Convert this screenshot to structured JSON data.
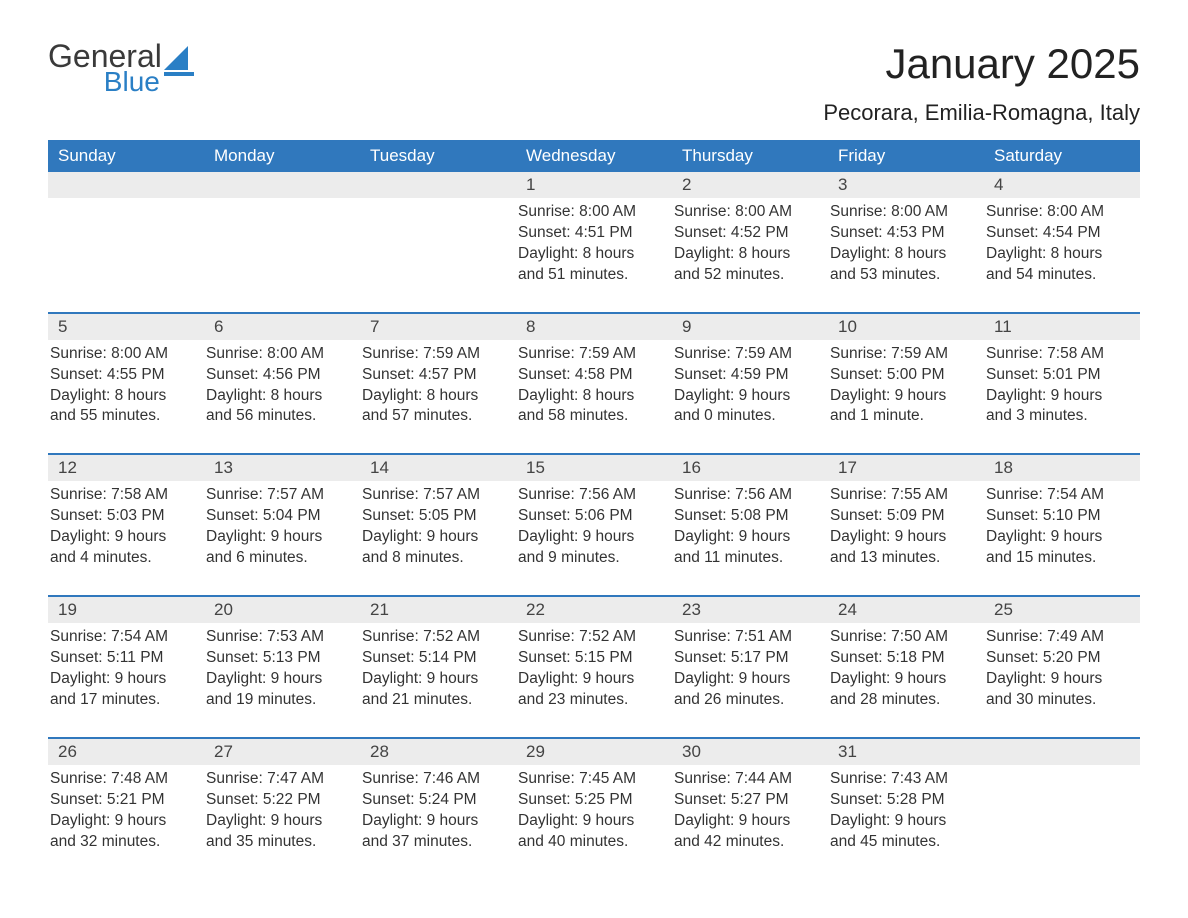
{
  "logo": {
    "text1": "General",
    "text2": "Blue",
    "icon_color": "#2a7fc5",
    "text1_color": "#3a3a3a"
  },
  "title": "January 2025",
  "location": "Pecorara, Emilia-Romagna, Italy",
  "header_bg": "#3078bd",
  "header_fg": "#ffffff",
  "daynum_bg": "#ececec",
  "border_color": "#3078bd",
  "text_color": "#333333",
  "day_headers": [
    "Sunday",
    "Monday",
    "Tuesday",
    "Wednesday",
    "Thursday",
    "Friday",
    "Saturday"
  ],
  "weeks": [
    {
      "nums": [
        "",
        "",
        "",
        "1",
        "2",
        "3",
        "4"
      ],
      "cells": [
        [],
        [],
        [],
        [
          "Sunrise: 8:00 AM",
          "Sunset: 4:51 PM",
          "Daylight: 8 hours",
          "and 51 minutes."
        ],
        [
          "Sunrise: 8:00 AM",
          "Sunset: 4:52 PM",
          "Daylight: 8 hours",
          "and 52 minutes."
        ],
        [
          "Sunrise: 8:00 AM",
          "Sunset: 4:53 PM",
          "Daylight: 8 hours",
          "and 53 minutes."
        ],
        [
          "Sunrise: 8:00 AM",
          "Sunset: 4:54 PM",
          "Daylight: 8 hours",
          "and 54 minutes."
        ]
      ]
    },
    {
      "nums": [
        "5",
        "6",
        "7",
        "8",
        "9",
        "10",
        "11"
      ],
      "cells": [
        [
          "Sunrise: 8:00 AM",
          "Sunset: 4:55 PM",
          "Daylight: 8 hours",
          "and 55 minutes."
        ],
        [
          "Sunrise: 8:00 AM",
          "Sunset: 4:56 PM",
          "Daylight: 8 hours",
          "and 56 minutes."
        ],
        [
          "Sunrise: 7:59 AM",
          "Sunset: 4:57 PM",
          "Daylight: 8 hours",
          "and 57 minutes."
        ],
        [
          "Sunrise: 7:59 AM",
          "Sunset: 4:58 PM",
          "Daylight: 8 hours",
          "and 58 minutes."
        ],
        [
          "Sunrise: 7:59 AM",
          "Sunset: 4:59 PM",
          "Daylight: 9 hours",
          "and 0 minutes."
        ],
        [
          "Sunrise: 7:59 AM",
          "Sunset: 5:00 PM",
          "Daylight: 9 hours",
          "and 1 minute."
        ],
        [
          "Sunrise: 7:58 AM",
          "Sunset: 5:01 PM",
          "Daylight: 9 hours",
          "and 3 minutes."
        ]
      ]
    },
    {
      "nums": [
        "12",
        "13",
        "14",
        "15",
        "16",
        "17",
        "18"
      ],
      "cells": [
        [
          "Sunrise: 7:58 AM",
          "Sunset: 5:03 PM",
          "Daylight: 9 hours",
          "and 4 minutes."
        ],
        [
          "Sunrise: 7:57 AM",
          "Sunset: 5:04 PM",
          "Daylight: 9 hours",
          "and 6 minutes."
        ],
        [
          "Sunrise: 7:57 AM",
          "Sunset: 5:05 PM",
          "Daylight: 9 hours",
          "and 8 minutes."
        ],
        [
          "Sunrise: 7:56 AM",
          "Sunset: 5:06 PM",
          "Daylight: 9 hours",
          "and 9 minutes."
        ],
        [
          "Sunrise: 7:56 AM",
          "Sunset: 5:08 PM",
          "Daylight: 9 hours",
          "and 11 minutes."
        ],
        [
          "Sunrise: 7:55 AM",
          "Sunset: 5:09 PM",
          "Daylight: 9 hours",
          "and 13 minutes."
        ],
        [
          "Sunrise: 7:54 AM",
          "Sunset: 5:10 PM",
          "Daylight: 9 hours",
          "and 15 minutes."
        ]
      ]
    },
    {
      "nums": [
        "19",
        "20",
        "21",
        "22",
        "23",
        "24",
        "25"
      ],
      "cells": [
        [
          "Sunrise: 7:54 AM",
          "Sunset: 5:11 PM",
          "Daylight: 9 hours",
          "and 17 minutes."
        ],
        [
          "Sunrise: 7:53 AM",
          "Sunset: 5:13 PM",
          "Daylight: 9 hours",
          "and 19 minutes."
        ],
        [
          "Sunrise: 7:52 AM",
          "Sunset: 5:14 PM",
          "Daylight: 9 hours",
          "and 21 minutes."
        ],
        [
          "Sunrise: 7:52 AM",
          "Sunset: 5:15 PM",
          "Daylight: 9 hours",
          "and 23 minutes."
        ],
        [
          "Sunrise: 7:51 AM",
          "Sunset: 5:17 PM",
          "Daylight: 9 hours",
          "and 26 minutes."
        ],
        [
          "Sunrise: 7:50 AM",
          "Sunset: 5:18 PM",
          "Daylight: 9 hours",
          "and 28 minutes."
        ],
        [
          "Sunrise: 7:49 AM",
          "Sunset: 5:20 PM",
          "Daylight: 9 hours",
          "and 30 minutes."
        ]
      ]
    },
    {
      "nums": [
        "26",
        "27",
        "28",
        "29",
        "30",
        "31",
        ""
      ],
      "cells": [
        [
          "Sunrise: 7:48 AM",
          "Sunset: 5:21 PM",
          "Daylight: 9 hours",
          "and 32 minutes."
        ],
        [
          "Sunrise: 7:47 AM",
          "Sunset: 5:22 PM",
          "Daylight: 9 hours",
          "and 35 minutes."
        ],
        [
          "Sunrise: 7:46 AM",
          "Sunset: 5:24 PM",
          "Daylight: 9 hours",
          "and 37 minutes."
        ],
        [
          "Sunrise: 7:45 AM",
          "Sunset: 5:25 PM",
          "Daylight: 9 hours",
          "and 40 minutes."
        ],
        [
          "Sunrise: 7:44 AM",
          "Sunset: 5:27 PM",
          "Daylight: 9 hours",
          "and 42 minutes."
        ],
        [
          "Sunrise: 7:43 AM",
          "Sunset: 5:28 PM",
          "Daylight: 9 hours",
          "and 45 minutes."
        ],
        []
      ]
    }
  ]
}
